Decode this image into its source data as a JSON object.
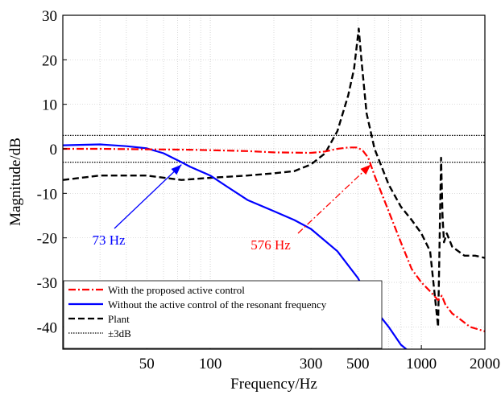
{
  "chart_data": {
    "type": "line",
    "xlabel": "Frequency/Hz",
    "ylabel": "Magnitude/dB",
    "xscale": "log",
    "xlim": [
      20,
      2000
    ],
    "ylim": [
      -45,
      30
    ],
    "x_ticks": [
      50,
      100,
      300,
      500,
      1000,
      2000
    ],
    "y_ticks": [
      30,
      20,
      10,
      0,
      -10,
      -20,
      -30,
      -40
    ],
    "grid": true,
    "legend_position": "bottom-left",
    "colors": {
      "proposed": "#ff0000",
      "without": "#0000ff",
      "plant": "#000000",
      "threshold": "#000000"
    },
    "series": [
      {
        "name": "With the proposed active control",
        "style": "dash-dot",
        "x": [
          20,
          30,
          50,
          80,
          100,
          150,
          200,
          300,
          350,
          400,
          450,
          500,
          530,
          560,
          600,
          700,
          800,
          900,
          1000,
          1100,
          1200,
          1250,
          1300,
          1400,
          1500,
          1700,
          2000
        ],
        "y": [
          0,
          0,
          -0.1,
          -0.2,
          -0.3,
          -0.5,
          -0.8,
          -0.9,
          -0.6,
          0,
          0.3,
          0.3,
          -0.5,
          -2,
          -6,
          -14,
          -21,
          -27,
          -30,
          -32,
          -34,
          -33,
          -35,
          -37,
          -38,
          -40,
          -41
        ]
      },
      {
        "name": "Without the active control of the resonant frequency",
        "style": "solid",
        "x": [
          20,
          30,
          40,
          50,
          60,
          73,
          80,
          100,
          120,
          150,
          200,
          250,
          300,
          400,
          500,
          600,
          700,
          800,
          900
        ],
        "y": [
          0.8,
          1,
          0.6,
          0.1,
          -1,
          -3,
          -4,
          -6,
          -8.5,
          -11.5,
          -14,
          -16,
          -18,
          -23,
          -29,
          -36,
          -40,
          -44,
          -46
        ]
      },
      {
        "name": "Plant",
        "style": "dashed",
        "x": [
          20,
          30,
          50,
          73,
          100,
          150,
          200,
          250,
          300,
          350,
          400,
          450,
          480,
          505,
          520,
          550,
          600,
          700,
          800,
          900,
          1000,
          1100,
          1200,
          1240,
          1260,
          1280,
          1320,
          1400,
          1600,
          1800,
          2000
        ],
        "y": [
          -7,
          -6,
          -6,
          -7,
          -6.5,
          -6,
          -5.5,
          -5,
          -3.5,
          -1,
          4,
          12,
          18,
          27,
          20,
          8,
          0,
          -8,
          -13,
          -16,
          -19,
          -23,
          -40,
          -2,
          -15,
          -21,
          -19,
          -22,
          -24,
          -24,
          -24.5
        ]
      },
      {
        "name": "±3dB",
        "style": "dotted",
        "x": [
          20,
          2000
        ],
        "y": [
          3,
          3
        ],
        "x2": [
          20,
          2000
        ],
        "y2": [
          -3,
          -3
        ]
      }
    ],
    "annotations": [
      {
        "text": "73 Hz",
        "color": "#0000ff",
        "arrow_to": {
          "x": 73,
          "y": -3
        }
      },
      {
        "text": "576 Hz",
        "color": "#ff0000",
        "arrow_to": {
          "x": 576,
          "y": -3
        }
      }
    ]
  }
}
